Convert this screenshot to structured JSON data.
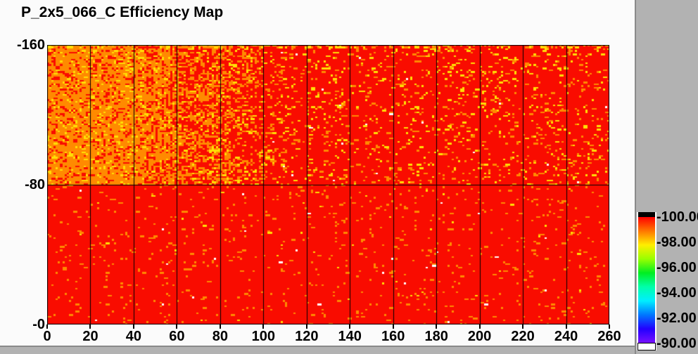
{
  "title": "P_2x5_066_C Efficiency Map",
  "window": {
    "bg_canvas": "#fbfbfb",
    "bg_frame": "#b2b2b2",
    "frame_edge": "#8a8a8a"
  },
  "axes": {
    "x": {
      "ticks": [
        {
          "v": 0,
          "label": "0"
        },
        {
          "v": 20,
          "label": "20"
        },
        {
          "v": 40,
          "label": "40"
        },
        {
          "v": 60,
          "label": "60"
        },
        {
          "v": 80,
          "label": "80"
        },
        {
          "v": 100,
          "label": "100"
        },
        {
          "v": 120,
          "label": "120"
        },
        {
          "v": 140,
          "label": "140"
        },
        {
          "v": 160,
          "label": "160"
        },
        {
          "v": 180,
          "label": "180"
        },
        {
          "v": 200,
          "label": "200"
        },
        {
          "v": 220,
          "label": "220"
        },
        {
          "v": 240,
          "label": "240"
        },
        {
          "v": 260,
          "label": "260"
        }
      ]
    },
    "y": {
      "ticks": [
        {
          "v": 160,
          "label": "-160"
        },
        {
          "v": 80,
          "label": "-80"
        },
        {
          "v": 0,
          "label": "-0"
        }
      ]
    }
  },
  "colorbar": {
    "tick_labels": [
      "-100.00",
      "-98.00",
      "-96.00",
      "-94.00",
      "-92.00",
      "-90.00"
    ],
    "overflow_color": "#000000",
    "underflow_color": "#ffffff",
    "gradient_stops": [
      "#ff0000",
      "#ff7700",
      "#ffee00",
      "#99ff00",
      "#00ee22",
      "#00ffaa",
      "#00eeff",
      "#0077ff",
      "#2200ff",
      "#7711ff"
    ]
  },
  "chart_data": {
    "type": "heatmap",
    "title": "P_2x5_066_C Efficiency Map",
    "x_range": [
      0,
      260
    ],
    "y_range": [
      -160,
      0
    ],
    "x_tick_step": 20,
    "y_tick_step": 80,
    "value_axis": {
      "min": 90.0,
      "max": 100.0,
      "tick_step": 2.0,
      "tick_labels": [
        "-100.00",
        "-98.00",
        "-96.00",
        "-94.00",
        "-92.00",
        "-90.00"
      ]
    },
    "grid": {
      "vertical_lines_every": 20,
      "horizontal_line_at": -80,
      "border": true
    },
    "palette": {
      "red": "#f90c00",
      "orange": "#ff8a00",
      "yellow": "#ffdf05",
      "white": "#ffffff"
    },
    "cells": {
      "cols": 260,
      "rows": 160
    },
    "seed": 1337,
    "top_edge_boost": {
      "rows": 2,
      "orange": 0.1,
      "yellow": 0.14
    },
    "double_cell_prob": 0.22,
    "regions": [
      {
        "band": "top",
        "x0": 0,
        "x1": 45,
        "base": "orange",
        "speckles": [
          {
            "color": "red",
            "p": 0.17
          },
          {
            "color": "yellow",
            "p": 0.09
          }
        ]
      },
      {
        "band": "top",
        "x0": 45,
        "x1": 52,
        "base": "orange",
        "speckles": [
          {
            "color": "red",
            "p": 0.3,
            "stripe_even": 1.5,
            "stripe_odd": 0.6
          },
          {
            "color": "yellow",
            "p": 0.08
          }
        ]
      },
      {
        "band": "top",
        "x0": 52,
        "x1": 62,
        "base": "red",
        "speckles": [
          {
            "color": "orange",
            "p": 0.48,
            "stripe_even": 1.45,
            "stripe_odd": 0.5
          },
          {
            "color": "yellow",
            "p": 0.1
          }
        ]
      },
      {
        "band": "top",
        "x0": 62,
        "x1": 85,
        "base": "red",
        "speckles": [
          {
            "color": "orange",
            "p": 0.3,
            "stripe_even": 1.5,
            "stripe_odd": 0.5
          },
          {
            "color": "yellow",
            "p": 0.08
          }
        ]
      },
      {
        "band": "top",
        "x0": 85,
        "x1": 100,
        "base": "red",
        "speckles": [
          {
            "color": "orange",
            "p": 0.17,
            "stripe_even": 1.5,
            "stripe_odd": 0.55
          },
          {
            "color": "yellow",
            "p": 0.06
          }
        ]
      },
      {
        "band": "top",
        "x0": 100,
        "x1": 110,
        "base": "red",
        "speckles": [
          {
            "color": "orange",
            "p": 0.1
          },
          {
            "color": "yellow",
            "p": 0.05
          },
          {
            "color": "white",
            "p": 0.001
          }
        ]
      },
      {
        "band": "top",
        "x0": 110,
        "x1": 260,
        "base": "red",
        "speckles": [
          {
            "color": "orange",
            "p": 0.05
          },
          {
            "color": "yellow",
            "p": 0.042
          },
          {
            "color": "white",
            "p": 0.0012
          }
        ]
      },
      {
        "band": "bottom",
        "x0": 0,
        "x1": 260,
        "base": "red",
        "speckles": [
          {
            "color": "orange",
            "p": 0.035
          },
          {
            "color": "yellow",
            "p": 0.004
          },
          {
            "color": "white",
            "p": 0.0015
          }
        ]
      }
    ]
  }
}
